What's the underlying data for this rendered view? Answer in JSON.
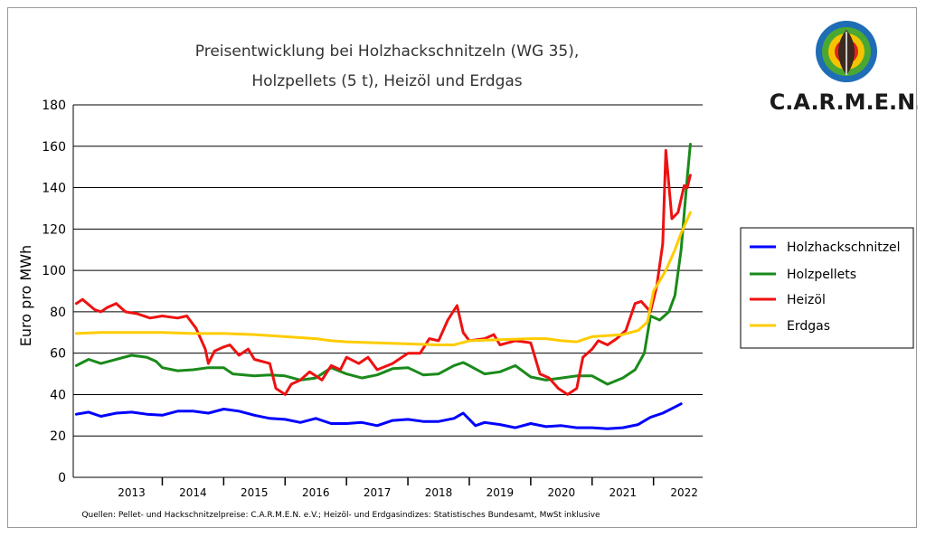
{
  "chart_data": {
    "type": "line",
    "title_lines": [
      "Preisentwicklung bei Holzhackschnitzeln (WG 35),",
      "Holzpellets (5 t), Heizöl und Erdgas"
    ],
    "ylabel": "Euro pro MWh",
    "ylim": [
      0,
      180
    ],
    "yticks": [
      0,
      20,
      40,
      60,
      80,
      100,
      120,
      140,
      160,
      180
    ],
    "xlim": [
      2012.55,
      2022.8
    ],
    "year_labels": [
      "2013",
      "2014",
      "2015",
      "2016",
      "2017",
      "2018",
      "2019",
      "2020",
      "2021",
      "2022"
    ],
    "grid": true,
    "legend_position": "right",
    "source": "Quellen: Pellet- und Hackschnitzelpreise: C.A.R.M.E.N. e.V.; Heizöl- und Erdgasindizes: Statistisches Bundesamt, MwSt inklusive",
    "series": [
      {
        "name": "Holzhackschnitzel",
        "color": "#0000ff",
        "points": [
          [
            2012.6,
            30.5
          ],
          [
            2012.8,
            31.5
          ],
          [
            2013.0,
            29.5
          ],
          [
            2013.25,
            31
          ],
          [
            2013.5,
            31.5
          ],
          [
            2013.75,
            30.5
          ],
          [
            2014.0,
            30
          ],
          [
            2014.25,
            32
          ],
          [
            2014.5,
            32
          ],
          [
            2014.75,
            31
          ],
          [
            2015.0,
            33
          ],
          [
            2015.25,
            32
          ],
          [
            2015.5,
            30
          ],
          [
            2015.75,
            28.5
          ],
          [
            2016.0,
            28
          ],
          [
            2016.25,
            26.5
          ],
          [
            2016.5,
            28.5
          ],
          [
            2016.75,
            26
          ],
          [
            2017.0,
            26
          ],
          [
            2017.25,
            26.5
          ],
          [
            2017.5,
            25
          ],
          [
            2017.75,
            27.5
          ],
          [
            2018.0,
            28
          ],
          [
            2018.25,
            27
          ],
          [
            2018.5,
            27
          ],
          [
            2018.75,
            28.5
          ],
          [
            2018.9,
            31
          ],
          [
            2019.1,
            25
          ],
          [
            2019.25,
            26.5
          ],
          [
            2019.5,
            25.5
          ],
          [
            2019.75,
            24
          ],
          [
            2020.0,
            26
          ],
          [
            2020.25,
            24.5
          ],
          [
            2020.5,
            25
          ],
          [
            2020.75,
            24
          ],
          [
            2021.0,
            24
          ],
          [
            2021.25,
            23.5
          ],
          [
            2021.5,
            24
          ],
          [
            2021.75,
            25.5
          ],
          [
            2021.95,
            29
          ],
          [
            2022.15,
            31
          ],
          [
            2022.35,
            34
          ],
          [
            2022.45,
            35.5
          ]
        ]
      },
      {
        "name": "Holzpellets",
        "color": "#1a8a1a",
        "points": [
          [
            2012.6,
            54
          ],
          [
            2012.8,
            57
          ],
          [
            2013.0,
            55
          ],
          [
            2013.25,
            57
          ],
          [
            2013.5,
            59
          ],
          [
            2013.75,
            58
          ],
          [
            2013.9,
            56
          ],
          [
            2014.0,
            53
          ],
          [
            2014.25,
            51.5
          ],
          [
            2014.5,
            52
          ],
          [
            2014.75,
            53
          ],
          [
            2015.0,
            53
          ],
          [
            2015.15,
            50
          ],
          [
            2015.5,
            49
          ],
          [
            2015.75,
            49.5
          ],
          [
            2016.0,
            49
          ],
          [
            2016.25,
            47
          ],
          [
            2016.5,
            48
          ],
          [
            2016.75,
            53
          ],
          [
            2017.0,
            50
          ],
          [
            2017.25,
            48
          ],
          [
            2017.5,
            49.5
          ],
          [
            2017.75,
            52.5
          ],
          [
            2018.0,
            53
          ],
          [
            2018.25,
            49.5
          ],
          [
            2018.5,
            50
          ],
          [
            2018.75,
            54
          ],
          [
            2018.9,
            55.5
          ],
          [
            2019.0,
            54
          ],
          [
            2019.25,
            50
          ],
          [
            2019.5,
            51
          ],
          [
            2019.75,
            54
          ],
          [
            2020.0,
            48.5
          ],
          [
            2020.25,
            47
          ],
          [
            2020.5,
            48
          ],
          [
            2020.75,
            49
          ],
          [
            2021.0,
            49
          ],
          [
            2021.25,
            45
          ],
          [
            2021.5,
            48
          ],
          [
            2021.7,
            52
          ],
          [
            2021.85,
            60
          ],
          [
            2021.95,
            78
          ],
          [
            2022.1,
            76
          ],
          [
            2022.25,
            80
          ],
          [
            2022.35,
            88
          ],
          [
            2022.45,
            110
          ],
          [
            2022.55,
            145
          ],
          [
            2022.6,
            161
          ]
        ]
      },
      {
        "name": "Heizöl",
        "color": "#ee1111",
        "points": [
          [
            2012.6,
            84
          ],
          [
            2012.7,
            86
          ],
          [
            2012.9,
            81
          ],
          [
            2013.0,
            80
          ],
          [
            2013.1,
            82
          ],
          [
            2013.25,
            84
          ],
          [
            2013.4,
            80
          ],
          [
            2013.6,
            79
          ],
          [
            2013.8,
            77
          ],
          [
            2014.0,
            78
          ],
          [
            2014.25,
            77
          ],
          [
            2014.4,
            78
          ],
          [
            2014.55,
            72
          ],
          [
            2014.7,
            62
          ],
          [
            2014.75,
            55
          ],
          [
            2014.85,
            61
          ],
          [
            2015.0,
            63
          ],
          [
            2015.1,
            64
          ],
          [
            2015.25,
            59
          ],
          [
            2015.4,
            62
          ],
          [
            2015.5,
            57
          ],
          [
            2015.75,
            55
          ],
          [
            2015.85,
            43
          ],
          [
            2016.0,
            40
          ],
          [
            2016.1,
            45
          ],
          [
            2016.25,
            47
          ],
          [
            2016.4,
            51
          ],
          [
            2016.6,
            47
          ],
          [
            2016.75,
            54
          ],
          [
            2016.9,
            52
          ],
          [
            2017.0,
            58
          ],
          [
            2017.2,
            55
          ],
          [
            2017.35,
            58
          ],
          [
            2017.5,
            52
          ],
          [
            2017.75,
            55
          ],
          [
            2018.0,
            60
          ],
          [
            2018.2,
            60
          ],
          [
            2018.35,
            67
          ],
          [
            2018.5,
            66
          ],
          [
            2018.65,
            76
          ],
          [
            2018.8,
            83
          ],
          [
            2018.9,
            70
          ],
          [
            2019.0,
            66
          ],
          [
            2019.25,
            67
          ],
          [
            2019.4,
            69
          ],
          [
            2019.5,
            64
          ],
          [
            2019.75,
            66
          ],
          [
            2020.0,
            65
          ],
          [
            2020.15,
            50
          ],
          [
            2020.3,
            48
          ],
          [
            2020.45,
            43
          ],
          [
            2020.6,
            40
          ],
          [
            2020.75,
            43
          ],
          [
            2020.85,
            58
          ],
          [
            2021.0,
            62
          ],
          [
            2021.1,
            66
          ],
          [
            2021.25,
            64
          ],
          [
            2021.4,
            67
          ],
          [
            2021.55,
            71
          ],
          [
            2021.7,
            84
          ],
          [
            2021.8,
            85
          ],
          [
            2021.95,
            80
          ],
          [
            2022.05,
            92
          ],
          [
            2022.15,
            113
          ],
          [
            2022.2,
            158
          ],
          [
            2022.3,
            125
          ],
          [
            2022.4,
            128
          ],
          [
            2022.5,
            141
          ],
          [
            2022.55,
            140
          ],
          [
            2022.6,
            146
          ]
        ]
      },
      {
        "name": "Erdgas",
        "color": "#ffcc00",
        "points": [
          [
            2012.6,
            69.5
          ],
          [
            2013.0,
            70
          ],
          [
            2013.5,
            70
          ],
          [
            2014.0,
            70
          ],
          [
            2014.5,
            69.5
          ],
          [
            2015.0,
            69.5
          ],
          [
            2015.5,
            69
          ],
          [
            2016.0,
            68
          ],
          [
            2016.5,
            67
          ],
          [
            2016.75,
            66
          ],
          [
            2017.0,
            65.5
          ],
          [
            2017.5,
            65
          ],
          [
            2018.0,
            64.5
          ],
          [
            2018.5,
            64
          ],
          [
            2018.75,
            64
          ],
          [
            2019.0,
            66
          ],
          [
            2019.5,
            66.5
          ],
          [
            2020.0,
            67
          ],
          [
            2020.25,
            67
          ],
          [
            2020.5,
            66
          ],
          [
            2020.75,
            65.5
          ],
          [
            2021.0,
            68
          ],
          [
            2021.25,
            68.5
          ],
          [
            2021.5,
            69
          ],
          [
            2021.75,
            71
          ],
          [
            2021.9,
            75
          ],
          [
            2022.0,
            90
          ],
          [
            2022.1,
            95
          ],
          [
            2022.2,
            100
          ],
          [
            2022.35,
            110
          ],
          [
            2022.45,
            118
          ],
          [
            2022.6,
            128
          ]
        ]
      }
    ]
  },
  "logo": {
    "text": "C.A.R.M.E.N.",
    "colors": [
      "#1e6db5",
      "#4aa832",
      "#f5c400",
      "#e2231a",
      "#3b2a20"
    ]
  }
}
